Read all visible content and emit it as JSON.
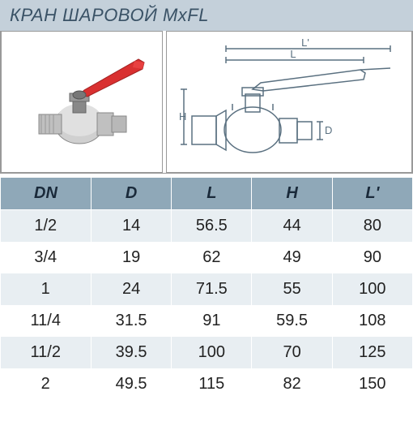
{
  "title": "КРАН ШАРОВОЙ MxFL",
  "table": {
    "columns": [
      "DN",
      "D",
      "L",
      "H",
      "L'"
    ],
    "rows": [
      [
        "1/2",
        "14",
        "56.5",
        "44",
        "80"
      ],
      [
        "3/4",
        "19",
        "62",
        "49",
        "90"
      ],
      [
        "1",
        "24",
        "71.5",
        "55",
        "100"
      ],
      [
        "11/4",
        "31.5",
        "91",
        "59.5",
        "108"
      ],
      [
        "11/2",
        "39.5",
        "100",
        "70",
        "125"
      ],
      [
        "2",
        "49.5",
        "115",
        "82",
        "150"
      ]
    ],
    "header_bg": "#8fa8b8",
    "row_odd_bg": "#e8eef2",
    "row_even_bg": "#ffffff",
    "header_text_color": "#1a2a3a",
    "cell_text_color": "#222222",
    "font_size": 20
  },
  "title_bar": {
    "bg": "#c4d0da",
    "text_color": "#3a5266",
    "font_size": 22
  },
  "photo": {
    "body_color": "#c8c8c8",
    "body_highlight": "#e8e8e8",
    "handle_color": "#d93030",
    "nut_color": "#888888"
  },
  "diagram": {
    "line_color": "#5a7080",
    "labels": {
      "L": "L",
      "L_prime": "L'",
      "H": "H",
      "D": "D"
    }
  }
}
